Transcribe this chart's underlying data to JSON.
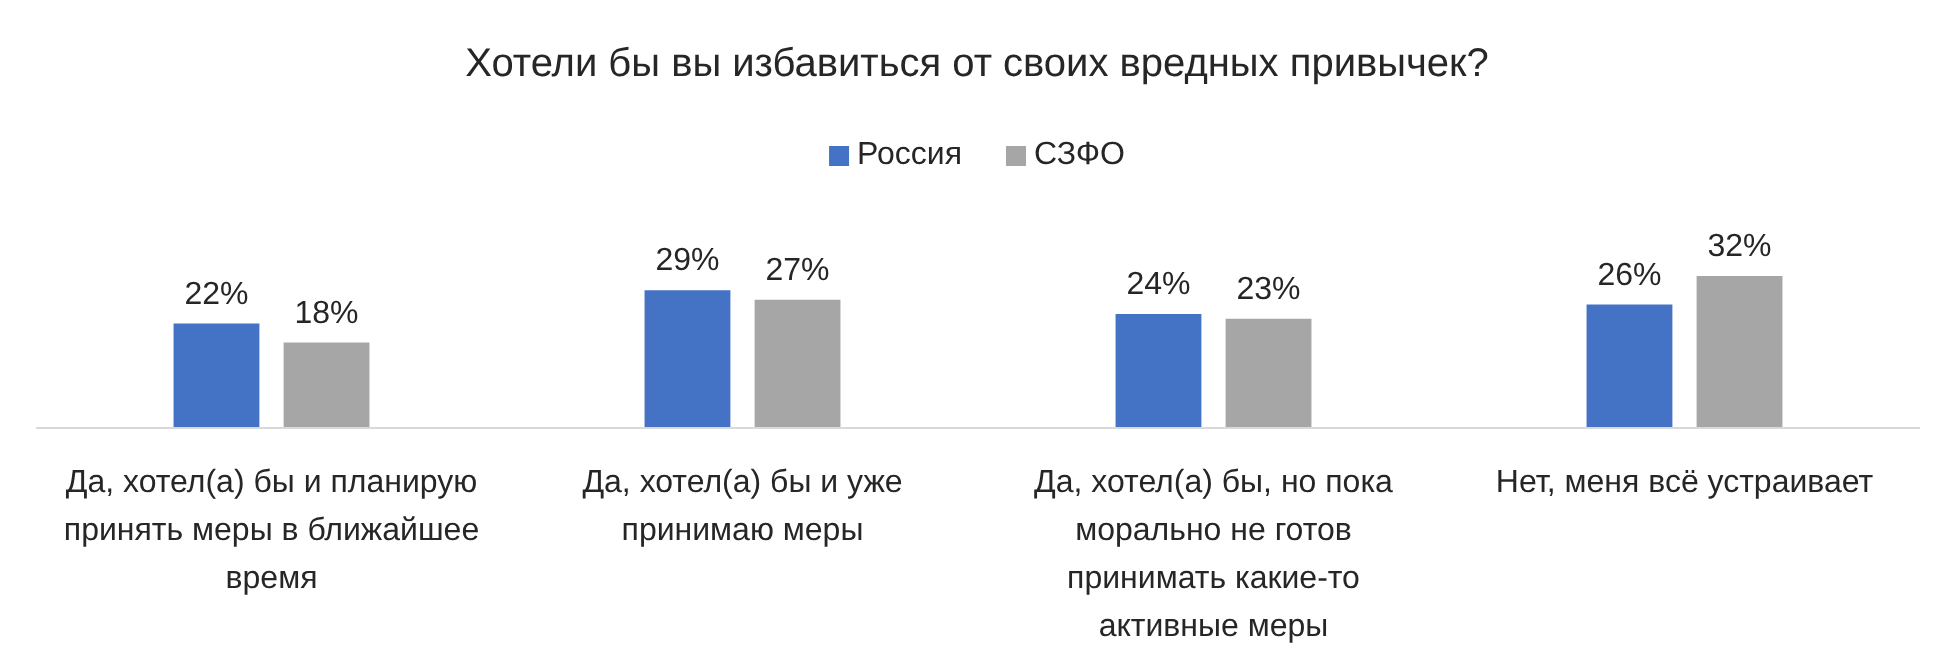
{
  "chart_data": {
    "type": "bar",
    "title": "Хотели бы вы избавиться от своих вредных привычек?",
    "categories": [
      "Да, хотел(а) бы и планирую принять меры в ближайшее время",
      "Да, хотел(а) бы и уже принимаю меры",
      "Да, хотел(а) бы, но пока морально не готов принимать какие-то активные меры",
      "Нет, меня всё устраивает"
    ],
    "series": [
      {
        "name": "Россия",
        "color": "#4472c4",
        "values": [
          22,
          29,
          24,
          26
        ],
        "value_labels": [
          "22%",
          "29%",
          "24%",
          "26%"
        ]
      },
      {
        "name": "СЗФО",
        "color": "#a6a6a6",
        "values": [
          18,
          27,
          23,
          32
        ],
        "value_labels": [
          "18%",
          "27%",
          "23%",
          "32%"
        ]
      }
    ],
    "legend": "top"
  }
}
